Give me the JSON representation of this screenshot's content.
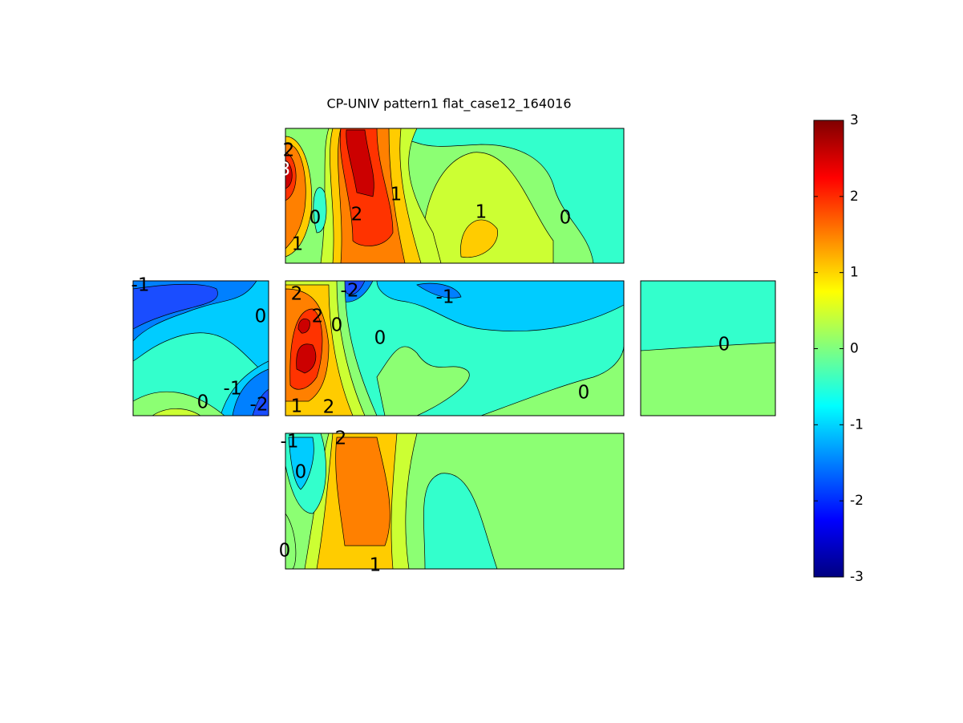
{
  "chart_data": {
    "type": "contour",
    "title": "CP-UNIV pattern1 flat_case12_164016",
    "colorbar": {
      "lim": [
        -3,
        3
      ],
      "ticks": [
        -3,
        -2,
        -1,
        0,
        1,
        2,
        3
      ],
      "colormap": "jet"
    },
    "panels": [
      {
        "contour_labels": [
          2,
          3,
          0,
          2,
          1,
          1,
          0,
          1
        ]
      },
      {
        "contour_labels": [
          -1,
          0,
          0,
          -1,
          -2
        ]
      },
      {
        "contour_labels": [
          2,
          -2,
          -1,
          2,
          0,
          0,
          0,
          1,
          2
        ]
      },
      {
        "contour_labels": [
          0
        ]
      },
      {
        "contour_labels": [
          -1,
          2,
          0,
          0,
          1
        ]
      }
    ]
  }
}
